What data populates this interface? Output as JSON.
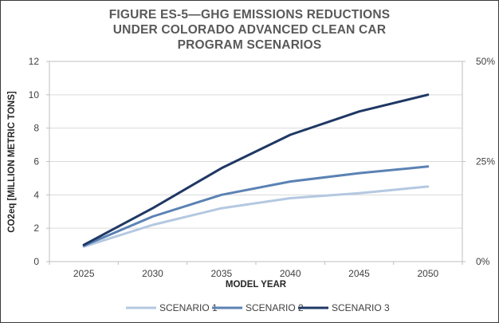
{
  "chart_data": {
    "type": "line",
    "title_lines": [
      "FIGURE ES-5—GHG EMISSIONS REDUCTIONS",
      "UNDER COLORADO ADVANCED CLEAN CAR",
      "PROGRAM SCENARIOS"
    ],
    "xlabel": "MODEL YEAR",
    "ylabel": "CO2eq [MILLION METRIC TONS]",
    "categories": [
      "2025",
      "2030",
      "2035",
      "2040",
      "2045",
      "2050"
    ],
    "ylim": [
      0,
      12
    ],
    "yticks": [
      "0",
      "2",
      "4",
      "6",
      "8",
      "10",
      "12"
    ],
    "y2lim": [
      0,
      50
    ],
    "y2ticks": [
      "0%",
      "25%",
      "50%"
    ],
    "grid": true,
    "legend_position": "bottom",
    "series": [
      {
        "name": "SCENARIO 1",
        "color": "#b4c8e0",
        "values": [
          0.9,
          2.2,
          3.2,
          3.8,
          4.1,
          4.5
        ]
      },
      {
        "name": "SCENARIO 2",
        "color": "#5b82b4",
        "values": [
          0.95,
          2.7,
          4.0,
          4.8,
          5.3,
          5.7
        ]
      },
      {
        "name": "SCENARIO 3",
        "color": "#1f3864",
        "values": [
          1.0,
          3.2,
          5.6,
          7.6,
          9.0,
          10.0
        ]
      }
    ]
  }
}
